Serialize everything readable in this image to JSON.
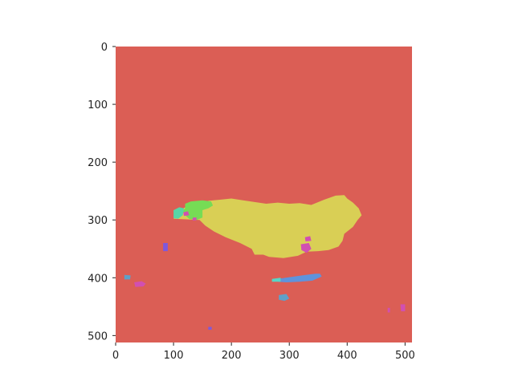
{
  "chart_data": {
    "type": "heatmap",
    "title": "",
    "xlabel": "",
    "ylabel": "",
    "image_width": 512,
    "image_height": 512,
    "xlim": [
      0,
      512
    ],
    "ylim": [
      512,
      0
    ],
    "grid": false,
    "x_ticks": [
      {
        "value": 0,
        "label": "0"
      },
      {
        "value": 100,
        "label": "100"
      },
      {
        "value": 200,
        "label": "200"
      },
      {
        "value": 300,
        "label": "300"
      },
      {
        "value": 400,
        "label": "400"
      },
      {
        "value": 500,
        "label": "500"
      }
    ],
    "y_ticks": [
      {
        "value": 0,
        "label": "0"
      },
      {
        "value": 100,
        "label": "100"
      },
      {
        "value": 200,
        "label": "200"
      },
      {
        "value": 300,
        "label": "300"
      },
      {
        "value": 400,
        "label": "400"
      },
      {
        "value": 500,
        "label": "500"
      }
    ],
    "background_color": "#db5e55",
    "regions": [
      {
        "color": "#d9cf55",
        "polygon": [
          [
            150,
            275
          ],
          [
            160,
            267
          ],
          [
            180,
            265
          ],
          [
            200,
            263
          ],
          [
            220,
            266
          ],
          [
            240,
            269
          ],
          [
            260,
            272
          ],
          [
            280,
            270
          ],
          [
            300,
            272
          ],
          [
            318,
            271
          ],
          [
            338,
            274
          ],
          [
            360,
            265
          ],
          [
            380,
            258
          ],
          [
            395,
            257
          ],
          [
            400,
            263
          ],
          [
            410,
            270
          ],
          [
            420,
            280
          ],
          [
            425,
            292
          ],
          [
            418,
            300
          ],
          [
            410,
            312
          ],
          [
            395,
            324
          ],
          [
            392,
            336
          ],
          [
            385,
            346
          ],
          [
            368,
            352
          ],
          [
            350,
            354
          ],
          [
            330,
            355
          ],
          [
            315,
            362
          ],
          [
            290,
            366
          ],
          [
            265,
            364
          ],
          [
            255,
            360
          ],
          [
            240,
            360
          ],
          [
            235,
            350
          ],
          [
            215,
            340
          ],
          [
            190,
            330
          ],
          [
            170,
            320
          ],
          [
            155,
            310
          ],
          [
            145,
            300
          ],
          [
            100,
            298
          ],
          [
            105,
            290
          ],
          [
            112,
            282
          ],
          [
            125,
            276
          ],
          [
            140,
            275
          ]
        ]
      },
      {
        "color": "#76dc55",
        "polygon": [
          [
            120,
            272
          ],
          [
            130,
            268
          ],
          [
            150,
            266
          ],
          [
            165,
            268
          ],
          [
            168,
            275
          ],
          [
            160,
            280
          ],
          [
            150,
            283
          ],
          [
            150,
            296
          ],
          [
            140,
            300
          ],
          [
            127,
            298
          ],
          [
            120,
            292
          ],
          [
            115,
            285
          ],
          [
            120,
            280
          ]
        ]
      },
      {
        "color": "#57d6a6",
        "polygon": [
          [
            100,
            283
          ],
          [
            110,
            278
          ],
          [
            118,
            280
          ],
          [
            116,
            292
          ],
          [
            108,
            298
          ],
          [
            100,
            297
          ]
        ]
      },
      {
        "color": "#5f93dc",
        "polygon": [
          [
            280,
            402
          ],
          [
            300,
            399
          ],
          [
            322,
            396
          ],
          [
            345,
            393
          ],
          [
            353,
            393
          ],
          [
            356,
            398
          ],
          [
            340,
            405
          ],
          [
            318,
            407
          ],
          [
            295,
            408
          ],
          [
            280,
            407
          ]
        ]
      },
      {
        "color": "#57d6c6",
        "polygon": [
          [
            270,
            402
          ],
          [
            285,
            400
          ],
          [
            285,
            407
          ],
          [
            270,
            407
          ]
        ]
      },
      {
        "color": "#d14fb1",
        "polygon": [
          [
            320,
            342
          ],
          [
            334,
            340
          ],
          [
            338,
            350
          ],
          [
            330,
            357
          ],
          [
            321,
            352
          ]
        ]
      },
      {
        "color": "#d14fb1",
        "polygon": [
          [
            327,
            330
          ],
          [
            336,
            328
          ],
          [
            338,
            336
          ],
          [
            328,
            337
          ]
        ]
      },
      {
        "color": "#d14fb1",
        "polygon": [
          [
            117,
            287
          ],
          [
            125,
            285
          ],
          [
            127,
            292
          ],
          [
            118,
            293
          ]
        ]
      },
      {
        "color": "#d14fb1",
        "polygon": [
          [
            133,
            296
          ],
          [
            140,
            296
          ],
          [
            139,
            301
          ],
          [
            133,
            301
          ]
        ]
      },
      {
        "color": "#d14fb1",
        "polygon": [
          [
            32,
            408
          ],
          [
            45,
            406
          ],
          [
            52,
            410
          ],
          [
            48,
            415
          ],
          [
            34,
            416
          ]
        ]
      },
      {
        "color": "#d14fb1",
        "polygon": [
          [
            492,
            446
          ],
          [
            500,
            446
          ],
          [
            500,
            458
          ],
          [
            493,
            458
          ]
        ]
      },
      {
        "color": "#d14fb1",
        "polygon": [
          [
            470,
            452
          ],
          [
            474,
            452
          ],
          [
            474,
            460
          ],
          [
            470,
            460
          ]
        ]
      },
      {
        "color": "#7f58dc",
        "polygon": [
          [
            82,
            340
          ],
          [
            90,
            340
          ],
          [
            90,
            354
          ],
          [
            82,
            354
          ]
        ]
      },
      {
        "color": "#7f58dc",
        "polygon": [
          [
            160,
            485
          ],
          [
            166,
            485
          ],
          [
            166,
            490
          ],
          [
            160,
            490
          ]
        ]
      },
      {
        "color": "#5fa0c8",
        "polygon": [
          [
            282,
            430
          ],
          [
            295,
            428
          ],
          [
            300,
            436
          ],
          [
            292,
            440
          ],
          [
            282,
            438
          ]
        ]
      },
      {
        "color": "#5fa0c8",
        "polygon": [
          [
            15,
            395
          ],
          [
            26,
            396
          ],
          [
            25,
            403
          ],
          [
            15,
            403
          ]
        ]
      }
    ]
  }
}
